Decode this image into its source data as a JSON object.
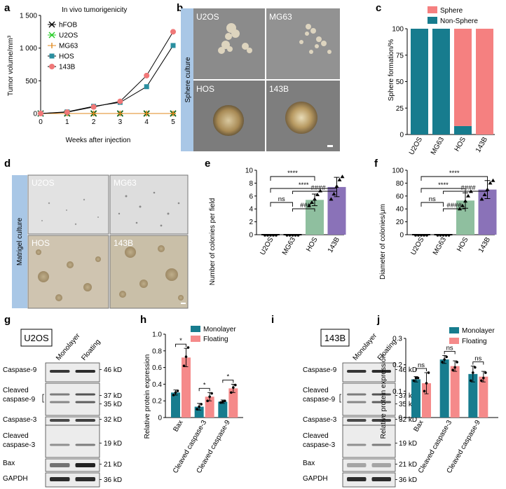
{
  "panel_labels": [
    "a",
    "b",
    "c",
    "d",
    "e",
    "f",
    "g",
    "h",
    "i",
    "j"
  ],
  "panel_b": {
    "side_label": "Sphere culture",
    "tiles": [
      "U2OS",
      "MG63",
      "HOS",
      "143B"
    ]
  },
  "panel_d": {
    "side_label": "Matrigel culture",
    "tiles": [
      "U2OS",
      "MG63",
      "HOS",
      "143B"
    ]
  },
  "panel_g": {
    "cell_line": "U2OS",
    "columns": [
      "Monolayer",
      "Floating"
    ],
    "rows": [
      {
        "label": "Caspase-9",
        "kd": [
          "46 kD"
        ]
      },
      {
        "label": "Cleaved caspase-9",
        "kd": [
          "37 kD",
          "35 kD"
        ]
      },
      {
        "label": "Caspase-3",
        "kd": [
          "32 kD"
        ]
      },
      {
        "label": "Cleaved caspase-3",
        "kd": [
          "19 kD"
        ]
      },
      {
        "label": "Bax",
        "kd": [
          "21 kD"
        ]
      },
      {
        "label": "GAPDH",
        "kd": [
          "36 kD"
        ]
      }
    ]
  },
  "panel_i": {
    "cell_line": "143B",
    "columns": [
      "Monolayer",
      "Floating"
    ],
    "rows": [
      {
        "label": "Caspase-9",
        "kd": [
          "46 kD"
        ]
      },
      {
        "label": "Cleaved caspase-9",
        "kd": [
          "37 kD",
          "35 kD"
        ]
      },
      {
        "label": "Caspase-3",
        "kd": [
          "32 kD"
        ]
      },
      {
        "label": "Cleaved caspase-3",
        "kd": [
          "19 kD"
        ]
      },
      {
        "label": "Bax",
        "kd": [
          "21 kD"
        ]
      },
      {
        "label": "GAPDH",
        "kd": [
          "36 kD"
        ]
      }
    ]
  },
  "colors": {
    "hFOB": "#000000",
    "U2OS": "#22cc22",
    "MG63": "#e08a1e",
    "HOS": "#2a8fa0",
    "143B": "#f07878",
    "sphere": "#f58080",
    "nonsphere": "#177c8e",
    "u2os_bar": "#1f1f1f",
    "mg63_bar": "#1f1f1f",
    "hos_bar": "#8fbf9f",
    "b143_bar": "#8a72b8",
    "mono": "#177c8e",
    "float": "#f58a8a",
    "side_band": "#a9c7e6"
  },
  "chart_data": [
    {
      "panel": "a",
      "type": "line",
      "title": "In vivo tumorigenicity",
      "xlabel": "Weeks after injection",
      "ylabel": "Tumor volume/mm³",
      "x": [
        0,
        1,
        2,
        3,
        4,
        5
      ],
      "xticks": [
        "0",
        "1",
        "2",
        "3",
        "4",
        "5"
      ],
      "yticks": [
        "0",
        "500",
        "1 000",
        "1 500"
      ],
      "ylim": [
        0,
        1500
      ],
      "legend": "top-left",
      "series": [
        {
          "name": "hFOB",
          "values": [
            0,
            0,
            0,
            0,
            0,
            0
          ]
        },
        {
          "name": "U2OS",
          "values": [
            0,
            0,
            0,
            0,
            0,
            0
          ]
        },
        {
          "name": "MG63",
          "values": [
            0,
            0,
            0,
            0,
            0,
            0
          ]
        },
        {
          "name": "HOS",
          "values": [
            0,
            25,
            110,
            170,
            410,
            1040
          ]
        },
        {
          "name": "143B",
          "values": [
            0,
            20,
            100,
            185,
            580,
            1250
          ]
        }
      ]
    },
    {
      "panel": "c",
      "type": "bar",
      "ylabel": "Sphere formation/%",
      "categories": [
        "U2OS",
        "MG63",
        "HOS",
        "143B"
      ],
      "ylim": [
        0,
        100
      ],
      "yticks": [
        "0",
        "25",
        "50",
        "75",
        "100"
      ],
      "legend": "top-right",
      "series": [
        {
          "name": "Sphere",
          "values": [
            0,
            0,
            92,
            100
          ]
        },
        {
          "name": "Non-Sphere",
          "values": [
            100,
            100,
            8,
            0
          ]
        }
      ]
    },
    {
      "panel": "e",
      "type": "bar",
      "ylabel": "Number of colonies per field",
      "categories": [
        "U2OS",
        "MG63",
        "HOS",
        "143B"
      ],
      "values": [
        0,
        0,
        5.4,
        7.4
      ],
      "errors": [
        0,
        0,
        0.9,
        1.5
      ],
      "points": [
        [
          0,
          0,
          0,
          0,
          0
        ],
        [
          0,
          0,
          0,
          0,
          0
        ],
        [
          4.5,
          5.0,
          5.5,
          6.2,
          6.8
        ],
        [
          5.5,
          6.3,
          7.5,
          8.5,
          9.0
        ]
      ],
      "ylim": [
        0,
        10
      ],
      "yticks": [
        "0",
        "2",
        "4",
        "6",
        "8",
        "10"
      ],
      "significance": [
        {
          "from": 0,
          "to": 2,
          "label": "****"
        },
        {
          "from": 0,
          "to": 3,
          "label": "****"
        },
        {
          "from": 0,
          "to": 1,
          "label": "ns"
        },
        {
          "from": 1,
          "to": 3,
          "label": "####"
        },
        {
          "from": 1,
          "to": 2,
          "label": "###"
        }
      ]
    },
    {
      "panel": "f",
      "type": "bar",
      "ylabel": "Diameter of colonies/μm",
      "categories": [
        "U2OS",
        "MG63",
        "HOS",
        "143B"
      ],
      "values": [
        0,
        0,
        53,
        70
      ],
      "errors": [
        0,
        0,
        12,
        14
      ],
      "points": [
        [
          0,
          0,
          0,
          0,
          0
        ],
        [
          0,
          0,
          0,
          0,
          0
        ],
        [
          40,
          45,
          52,
          60,
          67
        ],
        [
          55,
          62,
          70,
          80,
          84
        ]
      ],
      "ylim": [
        0,
        100
      ],
      "yticks": [
        "0",
        "20",
        "40",
        "60",
        "80",
        "100"
      ],
      "significance": [
        {
          "from": 0,
          "to": 3,
          "label": "****"
        },
        {
          "from": 0,
          "to": 2,
          "label": "****"
        },
        {
          "from": 0,
          "to": 1,
          "label": "ns"
        },
        {
          "from": 1,
          "to": 3,
          "label": "####"
        },
        {
          "from": 1,
          "to": 2,
          "label": "####"
        }
      ]
    },
    {
      "panel": "h",
      "type": "bar",
      "ylabel": "Relative protein expression",
      "categories": [
        "Bax",
        "Cleaved caspase-3",
        "Cleaved caspase-9"
      ],
      "ylim": [
        0,
        1.0
      ],
      "yticks": [
        "0",
        "0.2",
        "0.4",
        "0.6",
        "0.8",
        "1.0"
      ],
      "legend": "top-right",
      "series": [
        {
          "name": "Monolayer",
          "values": [
            0.3,
            0.13,
            0.19
          ],
          "errors": [
            0.03,
            0.04,
            0.02
          ],
          "points": [
            [
              0.27,
              0.3,
              0.32
            ],
            [
              0.1,
              0.13,
              0.16
            ],
            [
              0.18,
              0.19,
              0.2
            ]
          ]
        },
        {
          "name": "Floating",
          "values": [
            0.72,
            0.25,
            0.35
          ],
          "errors": [
            0.11,
            0.05,
            0.05
          ],
          "points": [
            [
              0.62,
              0.73,
              0.84
            ],
            [
              0.2,
              0.25,
              0.29
            ],
            [
              0.3,
              0.36,
              0.39
            ]
          ]
        }
      ],
      "significance": [
        "*",
        "*",
        "*"
      ]
    },
    {
      "panel": "j",
      "type": "bar",
      "ylabel": "Relative protein expression",
      "categories": [
        "Bax",
        "Cleaved caspase-3",
        "Cleaved caspase-9"
      ],
      "ylim": [
        0,
        0.3
      ],
      "yticks": [
        "0",
        "0.1",
        "0.2",
        "0.3"
      ],
      "legend": "top-right",
      "series": [
        {
          "name": "Monolayer",
          "values": [
            0.145,
            0.22,
            0.165
          ],
          "errors": [
            0.01,
            0.015,
            0.03
          ],
          "points": [
            [
              0.14,
              0.15,
              0.15
            ],
            [
              0.21,
              0.22,
              0.23
            ],
            [
              0.14,
              0.17,
              0.19
            ]
          ]
        },
        {
          "name": "Floating",
          "values": [
            0.13,
            0.195,
            0.155
          ],
          "errors": [
            0.04,
            0.02,
            0.02
          ],
          "points": [
            [
              0.1,
              0.13,
              0.17
            ],
            [
              0.18,
              0.19,
              0.21
            ],
            [
              0.14,
              0.15,
              0.17
            ]
          ]
        }
      ],
      "significance": [
        "ns",
        "ns",
        "ns"
      ]
    }
  ]
}
